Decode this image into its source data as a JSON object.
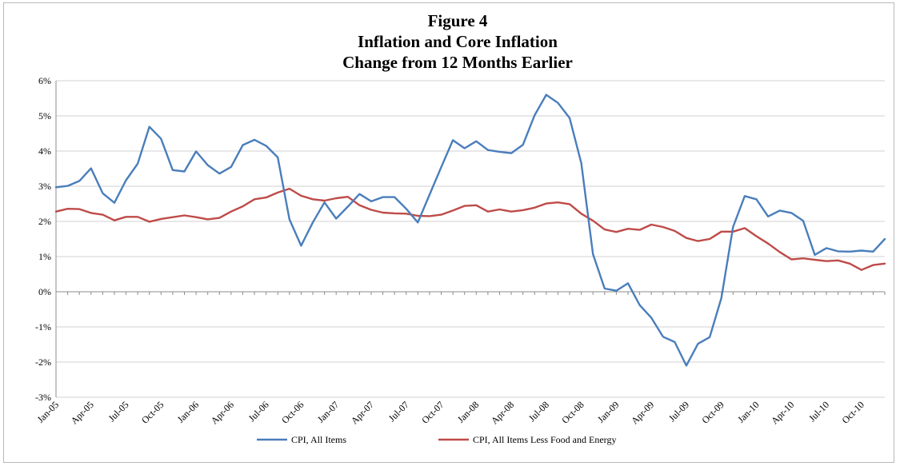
{
  "chart_data": {
    "type": "line",
    "title_lines": [
      "Figure 4",
      "Inflation and Core Inflation",
      "Change from 12 Months Earlier"
    ],
    "xlabel": "",
    "ylabel": "",
    "ylim": [
      -3,
      6
    ],
    "y_ticks": [
      6,
      5,
      4,
      3,
      2,
      1,
      0,
      -1,
      -2,
      -3
    ],
    "y_tick_labels": [
      "6%",
      "5%",
      "4%",
      "3%",
      "2%",
      "1%",
      "0%",
      "-1%",
      "-2%",
      "-3%"
    ],
    "x_tick_labels": [
      "Jan-05",
      "Apr-05",
      "Jul-05",
      "Oct-05",
      "Jan-06",
      "Apr-06",
      "Jul-06",
      "Oct-06",
      "Jan-07",
      "Apr-07",
      "Jul-07",
      "Oct-07",
      "Jan-08",
      "Apr-08",
      "Jul-08",
      "Oct-08",
      "Jan-09",
      "Apr-09",
      "Jul-09",
      "Oct-09",
      "Jan-10",
      "Apr-10",
      "Jul-10",
      "Oct-10"
    ],
    "x_start": "Jan-05",
    "x_end": "Dec-10",
    "grid": true,
    "legend_position": "bottom",
    "series": [
      {
        "name": "CPI, All Items",
        "color": "#4a7ebb",
        "values": [
          2.97,
          3.01,
          3.15,
          3.51,
          2.8,
          2.53,
          3.17,
          3.64,
          4.69,
          4.35,
          3.46,
          3.42,
          3.99,
          3.6,
          3.36,
          3.55,
          4.17,
          4.32,
          4.15,
          3.82,
          2.06,
          1.31,
          1.97,
          2.54,
          2.08,
          2.42,
          2.78,
          2.57,
          2.69,
          2.69,
          2.36,
          1.97,
          2.76,
          3.54,
          4.31,
          4.08,
          4.28,
          4.03,
          3.98,
          3.94,
          4.18,
          5.02,
          5.6,
          5.37,
          4.94,
          3.66,
          1.07,
          0.09,
          0.03,
          0.24,
          -0.38,
          -0.74,
          -1.28,
          -1.43,
          -2.1,
          -1.48,
          -1.29,
          -0.18,
          1.84,
          2.72,
          2.63,
          2.14,
          2.31,
          2.24,
          2.02,
          1.05,
          1.24,
          1.15,
          1.14,
          1.17,
          1.14,
          1.5
        ]
      },
      {
        "name": "CPI, All Items Less Food and Energy",
        "color": "#be4b48",
        "values": [
          2.28,
          2.36,
          2.35,
          2.24,
          2.19,
          2.03,
          2.13,
          2.13,
          1.99,
          2.07,
          2.12,
          2.17,
          2.12,
          2.06,
          2.1,
          2.28,
          2.43,
          2.63,
          2.68,
          2.82,
          2.93,
          2.73,
          2.63,
          2.59,
          2.66,
          2.7,
          2.46,
          2.33,
          2.25,
          2.23,
          2.22,
          2.16,
          2.15,
          2.19,
          2.31,
          2.44,
          2.46,
          2.28,
          2.34,
          2.28,
          2.32,
          2.39,
          2.51,
          2.54,
          2.49,
          2.22,
          2.02,
          1.77,
          1.7,
          1.79,
          1.76,
          1.91,
          1.84,
          1.73,
          1.53,
          1.44,
          1.5,
          1.71,
          1.71,
          1.81,
          1.58,
          1.37,
          1.13,
          0.92,
          0.95,
          0.91,
          0.87,
          0.89,
          0.8,
          0.62,
          0.76,
          0.8
        ]
      }
    ]
  }
}
